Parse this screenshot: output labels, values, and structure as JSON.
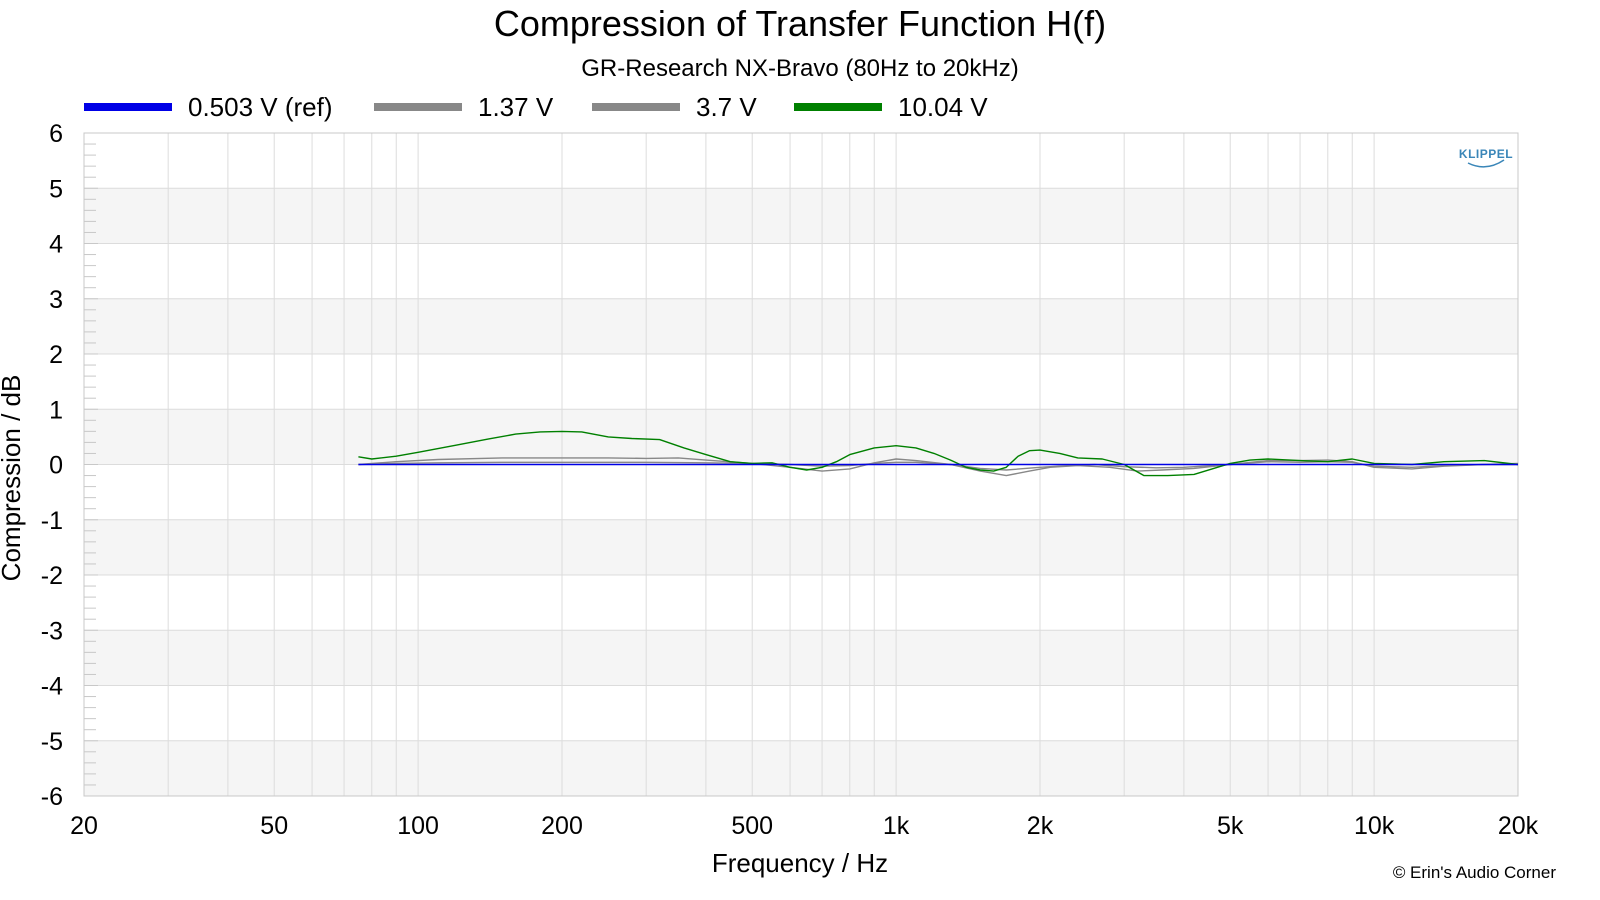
{
  "chart_data": {
    "type": "line",
    "title": "Compression of Transfer Function H(f)",
    "subtitle": "GR-Research NX-Bravo (80Hz to 20kHz)",
    "xlabel": "Frequency / Hz",
    "ylabel": "Compression / dB",
    "xscale": "log",
    "xlim": [
      20,
      20000
    ],
    "ylim": [
      -6,
      6
    ],
    "xticks": [
      {
        "value": 20,
        "label": "20"
      },
      {
        "value": 50,
        "label": "50"
      },
      {
        "value": 100,
        "label": "100"
      },
      {
        "value": 200,
        "label": "200"
      },
      {
        "value": 500,
        "label": "500"
      },
      {
        "value": 1000,
        "label": "1k"
      },
      {
        "value": 2000,
        "label": "2k"
      },
      {
        "value": 5000,
        "label": "5k"
      },
      {
        "value": 10000,
        "label": "10k"
      },
      {
        "value": 20000,
        "label": "20k"
      }
    ],
    "yticks": [
      {
        "value": 6,
        "label": "6"
      },
      {
        "value": 5,
        "label": "5"
      },
      {
        "value": 4,
        "label": "4"
      },
      {
        "value": 3,
        "label": "3"
      },
      {
        "value": 2,
        "label": "2"
      },
      {
        "value": 1,
        "label": "1"
      },
      {
        "value": 0,
        "label": "0"
      },
      {
        "value": -1,
        "label": "-1"
      },
      {
        "value": -2,
        "label": "-2"
      },
      {
        "value": -3,
        "label": "-3"
      },
      {
        "value": -4,
        "label": "-4"
      },
      {
        "value": -5,
        "label": "-5"
      },
      {
        "value": -6,
        "label": "-6"
      }
    ],
    "grid": true,
    "legend_position": "top",
    "series": [
      {
        "name": "0.503 V (ref)",
        "color": "#0000e6",
        "x": [
          75,
          100,
          200,
          500,
          1000,
          2000,
          5000,
          10000,
          20000
        ],
        "y": [
          0,
          0,
          0,
          0,
          0,
          0,
          0,
          0,
          0
        ]
      },
      {
        "name": "1.37 V",
        "color": "#888888",
        "x": [
          75,
          90,
          110,
          150,
          200,
          300,
          400,
          500,
          600,
          700,
          800,
          900,
          1000,
          1100,
          1300,
          1500,
          1700,
          2000,
          2300,
          2600,
          3000,
          3500,
          4000,
          5000,
          6000,
          7000,
          8000,
          9000,
          10000,
          12000,
          14000,
          17000,
          20000
        ],
        "y": [
          0,
          0.02,
          0.03,
          0.04,
          0.04,
          0.04,
          0.03,
          0.02,
          0.0,
          -0.03,
          -0.02,
          0.02,
          0.04,
          0.04,
          0.0,
          -0.07,
          -0.1,
          -0.05,
          -0.02,
          0.0,
          -0.04,
          -0.06,
          -0.05,
          0.0,
          0.05,
          0.04,
          0.05,
          0.04,
          -0.03,
          -0.05,
          -0.02,
          0.0,
          0.0
        ]
      },
      {
        "name": "3.7 V",
        "color": "#888888",
        "x": [
          75,
          90,
          110,
          150,
          200,
          250,
          300,
          350,
          400,
          500,
          600,
          700,
          800,
          900,
          1000,
          1100,
          1300,
          1500,
          1700,
          1900,
          2100,
          2400,
          2800,
          3200,
          3600,
          4200,
          5000,
          6000,
          7000,
          8000,
          9000,
          10000,
          12000,
          14000,
          17000,
          20000
        ],
        "y": [
          0,
          0.05,
          0.09,
          0.12,
          0.12,
          0.12,
          0.11,
          0.12,
          0.08,
          0.02,
          -0.05,
          -0.12,
          -0.08,
          0.03,
          0.1,
          0.07,
          0.0,
          -0.12,
          -0.2,
          -0.12,
          -0.05,
          -0.02,
          -0.05,
          -0.12,
          -0.1,
          -0.07,
          0.0,
          0.07,
          0.07,
          0.08,
          0.05,
          -0.05,
          -0.08,
          -0.03,
          0.0,
          0.02
        ]
      },
      {
        "name": "10.04 V",
        "color": "#008000",
        "x": [
          75,
          80,
          90,
          100,
          120,
          140,
          160,
          180,
          200,
          220,
          250,
          280,
          320,
          360,
          400,
          450,
          500,
          550,
          600,
          650,
          700,
          750,
          800,
          900,
          1000,
          1100,
          1200,
          1300,
          1400,
          1500,
          1600,
          1700,
          1800,
          1900,
          2000,
          2200,
          2400,
          2700,
          3000,
          3300,
          3700,
          4200,
          5000,
          5500,
          6000,
          7000,
          8000,
          9000,
          10000,
          12000,
          14000,
          17000,
          20000
        ],
        "y": [
          0.14,
          0.1,
          0.15,
          0.22,
          0.35,
          0.46,
          0.55,
          0.59,
          0.6,
          0.59,
          0.5,
          0.47,
          0.45,
          0.3,
          0.18,
          0.05,
          0.02,
          0.03,
          -0.05,
          -0.1,
          -0.05,
          0.05,
          0.18,
          0.3,
          0.34,
          0.3,
          0.2,
          0.08,
          -0.05,
          -0.1,
          -0.12,
          -0.05,
          0.15,
          0.25,
          0.26,
          0.2,
          0.12,
          0.1,
          0.0,
          -0.2,
          -0.2,
          -0.18,
          0.02,
          0.08,
          0.1,
          0.07,
          0.05,
          0.1,
          0.02,
          0.0,
          0.05,
          0.07,
          0.0
        ]
      }
    ]
  },
  "watermark": {
    "logo_text": "KLIPPEL",
    "credit": "© Erin's Audio Corner"
  }
}
